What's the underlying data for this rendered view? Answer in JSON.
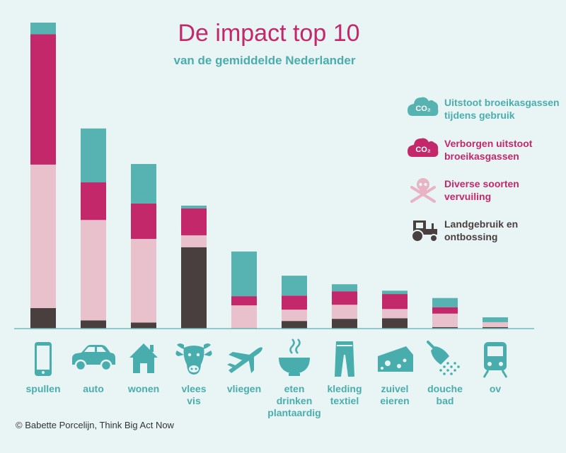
{
  "colors": {
    "background": "#e9f5f5",
    "gebruik": "#57b3b2",
    "verborgen": "#c2286a",
    "vervuiling": "#e8c1cd",
    "landgebruik": "#4a3f3f",
    "title": "#c2286a",
    "subtitle": "#4aadad",
    "category": "#4aadad",
    "icon": "#4aadad"
  },
  "chart_data": {
    "type": "bar",
    "stacked": true,
    "title": "De impact top 10",
    "subtitle": "van de gemiddelde Nederlander",
    "xlabel": "",
    "ylabel": "",
    "ylim": [
      0,
      100
    ],
    "categories": [
      "spullen",
      "auto",
      "wonen",
      "vlees vis",
      "vliegen",
      "eten drinken plantaardig",
      "kleding textiel",
      "zuivel eieren",
      "douche bad",
      "ov"
    ],
    "category_lines": [
      [
        "spullen"
      ],
      [
        "auto"
      ],
      [
        "wonen"
      ],
      [
        "vlees",
        "vis"
      ],
      [
        "vliegen"
      ],
      [
        "eten",
        "drinken",
        "plantaardig"
      ],
      [
        "kleding",
        "textiel"
      ],
      [
        "zuivel",
        "eieren"
      ],
      [
        "douche",
        "bad"
      ],
      [
        "ov"
      ]
    ],
    "category_icons": [
      "phone-icon",
      "car-icon",
      "house-icon",
      "cow-icon",
      "airplane-icon",
      "bowl-icon",
      "trousers-icon",
      "cheese-icon",
      "shower-icon",
      "train-icon"
    ],
    "series": [
      {
        "name": "Landgebruik en ontbossing",
        "color": "#4a3f3f",
        "values": [
          6.7,
          2.7,
          2.0,
          26.6,
          0.2,
          2.5,
          3.2,
          3.4,
          0.5,
          0.5
        ]
      },
      {
        "name": "Diverse soorten vervuiling",
        "color": "#e8c1cd",
        "values": [
          46.9,
          32.8,
          27.3,
          3.9,
          7.4,
          3.7,
          4.6,
          3.0,
          4.4,
          1.6
        ]
      },
      {
        "name": "Verborgen uitstoot broeikasgassen",
        "color": "#c2286a",
        "values": [
          42.6,
          12.3,
          11.6,
          8.8,
          3.0,
          4.6,
          4.4,
          4.9,
          2.1,
          0.0
        ]
      },
      {
        "name": "Uitstoot broeikasgassen tijdens gebruik",
        "color": "#57b3b2",
        "values": [
          3.8,
          17.6,
          12.9,
          0.9,
          14.6,
          6.5,
          2.3,
          1.1,
          3.0,
          1.6
        ]
      }
    ],
    "legend_placement": "right",
    "grid": false
  },
  "legend": [
    {
      "lines": [
        "Uitstoot broeikasgassen",
        "tijdens gebruik"
      ],
      "color": "#4aadad",
      "icon": "co2-cloud-icon",
      "icon_color": "#57b3b2",
      "icon_text": "CO₂"
    },
    {
      "lines": [
        "Verborgen uitstoot",
        "broeikasgassen"
      ],
      "color": "#c2286a",
      "icon": "co2-cloud-icon",
      "icon_color": "#c2286a",
      "icon_text": "CO₂"
    },
    {
      "lines": [
        "Diverse soorten",
        "vervuiling"
      ],
      "color": "#c2286a",
      "icon": "skull-crossbones-icon",
      "icon_color": "#e8b4c4"
    },
    {
      "lines": [
        "Landgebruik en",
        "ontbossing"
      ],
      "color": "#4a3f3f",
      "icon": "tractor-icon",
      "icon_color": "#4a3f3f"
    }
  ],
  "credit": "© Babette Porcelijn, Think Big Act Now"
}
